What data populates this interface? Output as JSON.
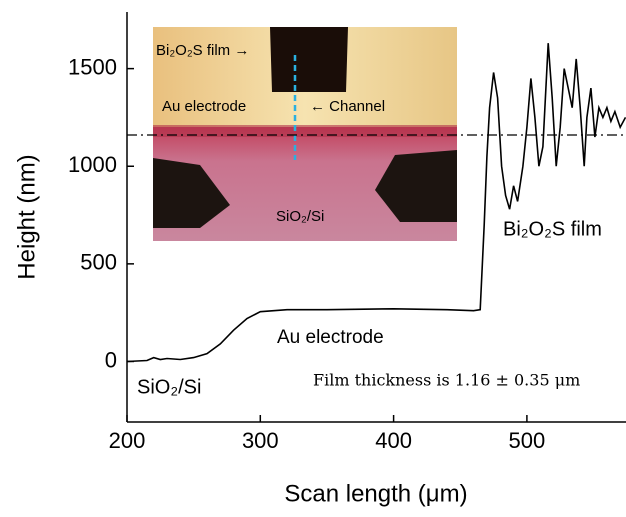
{
  "chart_data": {
    "type": "line",
    "xlabel": "Scan length (μm)",
    "ylabel": "Height (nm)",
    "x": [
      200,
      215,
      220,
      225,
      230,
      240,
      250,
      260,
      270,
      280,
      290,
      300,
      320,
      350,
      400,
      440,
      460,
      465,
      468,
      470,
      472,
      475,
      478,
      481,
      484,
      487,
      490,
      493,
      497,
      500,
      503,
      506,
      509,
      512,
      516,
      519,
      522,
      525,
      528,
      531,
      534,
      537,
      540,
      543,
      545,
      548,
      551,
      554,
      557,
      560,
      563,
      566,
      570,
      574
    ],
    "values": [
      0,
      5,
      20,
      10,
      15,
      10,
      20,
      40,
      90,
      160,
      220,
      255,
      265,
      265,
      270,
      265,
      260,
      265,
      700,
      1050,
      1300,
      1480,
      1350,
      1000,
      850,
      780,
      900,
      820,
      1000,
      1200,
      1450,
      1250,
      1000,
      1100,
      1630,
      1350,
      1000,
      1200,
      1500,
      1400,
      1300,
      1550,
      1300,
      1000,
      1250,
      1400,
      1150,
      1300,
      1250,
      1300,
      1230,
      1280,
      1200,
      1250
    ],
    "color": "#000000",
    "reference_line": 1160,
    "xlim": [
      200,
      574
    ],
    "ylim": [
      -310,
      1790
    ],
    "xticks": [
      200,
      300,
      400,
      500
    ],
    "yticks": [
      0,
      500,
      1000,
      1500
    ],
    "annotations": [
      "SiO₂/Si",
      "Au electrode",
      "Bi₂O₂S film",
      "Film thickness is 1.16 ± 0.35 μm"
    ],
    "inset_labels": [
      "Bi₂O₂S film →",
      "Au electrode",
      "← Channel",
      "SiO₂/Si"
    ]
  }
}
